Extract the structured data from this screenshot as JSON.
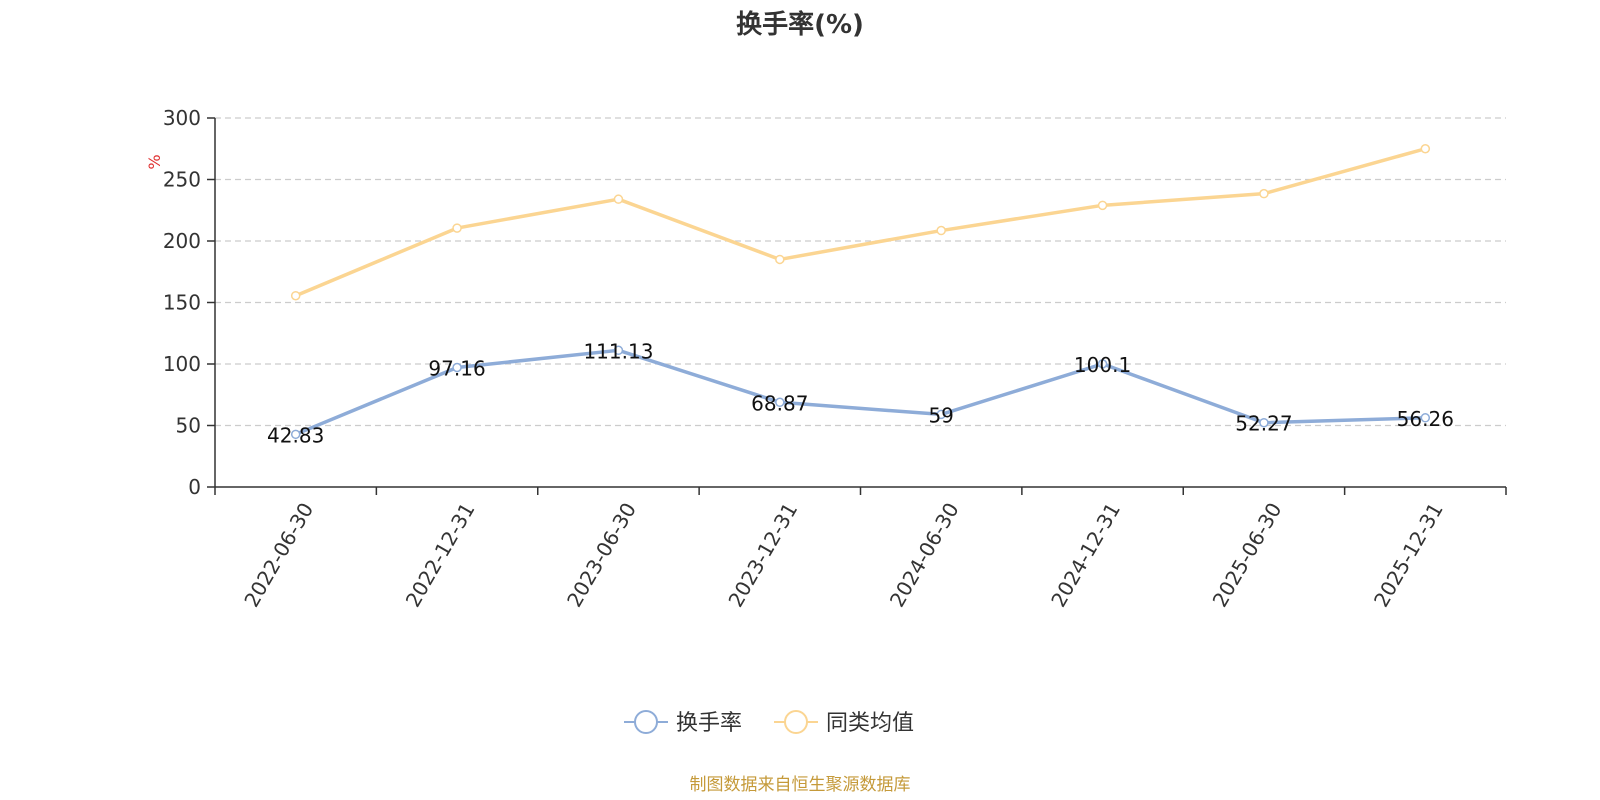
{
  "chart_data": {
    "type": "line",
    "title": "换手率(%)",
    "ylabel": "%",
    "xlabel": "",
    "categories": [
      "2022-06-30",
      "2022-12-31",
      "2023-06-30",
      "2023-12-31",
      "2024-06-30",
      "2024-12-31",
      "2025-06-30",
      "2025-12-31"
    ],
    "ylim": [
      0,
      300
    ],
    "yticks": [
      0,
      50,
      100,
      150,
      200,
      250,
      300
    ],
    "grid": true,
    "legend_position": "bottom-center",
    "series": [
      {
        "name": "换手率",
        "values": [
          42.83,
          97.16,
          111.13,
          68.87,
          59,
          100.1,
          52.27,
          56.26
        ],
        "labels": [
          "42.83",
          "97.16",
          "111.13",
          "68.87",
          "59",
          "100.1",
          "52.27",
          "56.26"
        ],
        "color": "#8eacd8"
      },
      {
        "name": "同类均值",
        "values": [
          155.5,
          210.5,
          234,
          185,
          208.5,
          229,
          238.5,
          275
        ],
        "color": "#fbd592"
      }
    ]
  },
  "colors": {
    "unit": "#e03030",
    "source": "#c59a3a",
    "axis": "#333333",
    "grid": "#cccccc"
  },
  "source_note": "制图数据来自恒生聚源数据库"
}
